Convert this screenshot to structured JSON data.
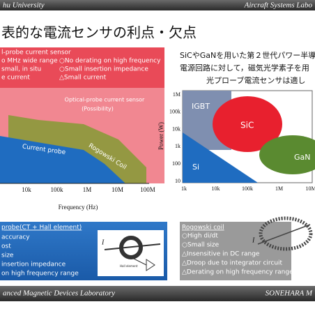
{
  "header": {
    "left": "hu University",
    "right": "Aircraft Systems Labo"
  },
  "title": "表的な電流センサの利点・欠点",
  "optical_box": {
    "title": "l-probe current sensor",
    "items": [
      "o MHz wide range",
      "○No derating on high frequency",
      "small, in situ",
      "○Small insertion impedance",
      "e current",
      "△Small current"
    ]
  },
  "right_text": [
    "SiCやGaNを用いた第２世代パワー半導",
    "電源回路に対して，磁気光学素子を用",
    "光プローブ電流センサは適し"
  ],
  "left_chart": {
    "labels": [
      "Optical-probe current sensor",
      "(Possibility)",
      "Rogowski Coil",
      "Current probe"
    ],
    "x_ticks": [
      "10k",
      "100k",
      "1M",
      "10M",
      "100M"
    ],
    "x_label": "Frequency (Hz)"
  },
  "right_chart": {
    "y_label": "Power (W)",
    "y_ticks": [
      "1M",
      "100k",
      "10k",
      "1k",
      "100",
      "10"
    ],
    "x_ticks": [
      "1k",
      "10k",
      "100k",
      "1M",
      "10M"
    ],
    "regions": [
      "IGBT",
      "SiC",
      "GaN",
      "Si"
    ]
  },
  "probe_box": {
    "title": "probe(CT + Hall element)",
    "items": [
      "accuracy",
      "ost",
      "size",
      "insertion impedance",
      "on high frequency range"
    ]
  },
  "diagram": {
    "current": "I",
    "hall": "Hall element",
    "current2": "I"
  },
  "rogowski_box": {
    "title": "Rogowski coil",
    "items": [
      "○High di/dt",
      "○Small size",
      "△Insensitive in DC range",
      "△Droop due to integrator circuit",
      "△Derating on high frequency range"
    ]
  },
  "footer": {
    "left": "anced Magnetic Devices Laboratory",
    "right": "SONEHARA M"
  }
}
